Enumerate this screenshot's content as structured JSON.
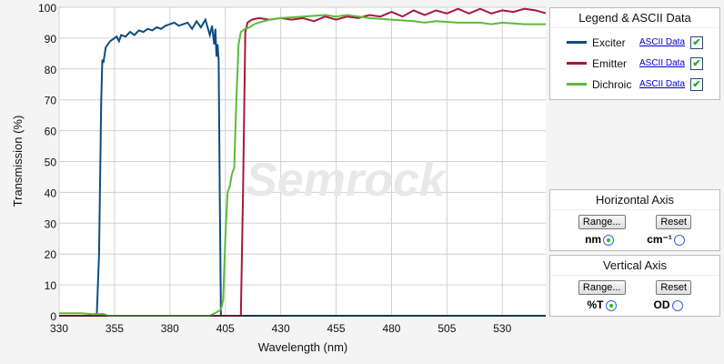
{
  "chart_data": {
    "type": "line",
    "title": "",
    "xlabel": "Wavelength (nm)",
    "ylabel": "Transmission (%)",
    "xlim": [
      330,
      550
    ],
    "ylim": [
      0,
      100
    ],
    "xticks": [
      330,
      355,
      380,
      405,
      430,
      455,
      480,
      505,
      530
    ],
    "yticks": [
      0,
      10,
      20,
      30,
      40,
      50,
      60,
      70,
      80,
      90,
      100
    ],
    "grid": true,
    "watermark": "Semrock",
    "series": [
      {
        "name": "Exciter",
        "color": "#0e4d7f",
        "x": [
          330,
          347,
          348,
          349,
          349.5,
          350,
          351,
          352,
          353,
          355,
          356,
          357,
          358,
          360,
          362,
          364,
          366,
          368,
          370,
          372,
          374,
          376,
          378,
          380,
          382,
          384,
          386,
          388,
          390,
          392,
          394,
          396,
          398,
          399,
          400,
          400.5,
          401,
          401.5,
          402,
          402.5,
          403,
          404,
          550
        ],
        "y": [
          0,
          0,
          20,
          70,
          83,
          82,
          87,
          88,
          89,
          90,
          90.5,
          89,
          91,
          90.5,
          92,
          91,
          92.5,
          92,
          93,
          92.5,
          93.5,
          93,
          94,
          94.5,
          95,
          94,
          94.5,
          95,
          93,
          95.5,
          93.5,
          96,
          91,
          94,
          88,
          93,
          84,
          88,
          83,
          40,
          0,
          0,
          0
        ]
      },
      {
        "name": "Emitter",
        "color": "#a41a3a",
        "x": [
          330,
          412,
          413,
          414,
          415,
          417,
          420,
          425,
          430,
          435,
          440,
          445,
          450,
          455,
          460,
          465,
          470,
          475,
          480,
          485,
          490,
          495,
          500,
          505,
          510,
          515,
          520,
          525,
          530,
          535,
          540,
          545,
          550
        ],
        "y": [
          0,
          0,
          40,
          92,
          95,
          96,
          96.5,
          96,
          96.5,
          96,
          96.5,
          95.5,
          97,
          96,
          97,
          96.5,
          97.5,
          97,
          98.5,
          97,
          99,
          97.5,
          99,
          98,
          99.5,
          98,
          99.5,
          98,
          99,
          98.5,
          99.5,
          99,
          98
        ]
      },
      {
        "name": "Dichroic",
        "color": "#5cba3c",
        "x": [
          330,
          340,
          345,
          350,
          352,
          355,
          398,
          402,
          403,
          404,
          405,
          406,
          407,
          408,
          409,
          410,
          411,
          412,
          414,
          416,
          418,
          420,
          425,
          430,
          440,
          450,
          455,
          460,
          470,
          480,
          490,
          495,
          500,
          510,
          520,
          525,
          530,
          540,
          550
        ],
        "y": [
          0.8,
          0.8,
          0.5,
          0.6,
          0,
          0,
          0,
          1.5,
          2,
          5,
          25,
          40,
          42,
          46,
          48,
          70,
          88,
          92,
          93,
          93.5,
          94.5,
          95,
          96,
          96.5,
          97,
          97.5,
          97,
          97.5,
          96.5,
          96,
          95.5,
          95,
          95.5,
          95,
          95,
          94.5,
          95,
          94.5,
          94.5
        ]
      }
    ]
  },
  "legend": {
    "title": "Legend & ASCII Data",
    "items": [
      {
        "name": "Exciter",
        "link": "ASCII Data",
        "checked": "✔"
      },
      {
        "name": "Emitter",
        "link": "ASCII Data",
        "checked": "✔"
      },
      {
        "name": "Dichroic",
        "link": "ASCII Data",
        "checked": "✔"
      }
    ]
  },
  "haxis": {
    "title": "Horizontal Axis",
    "range": "Range...",
    "reset": "Reset",
    "opt1": "nm",
    "opt2": "cm⁻¹",
    "selected": "nm"
  },
  "vaxis": {
    "title": "Vertical  Axis",
    "range": "Range...",
    "reset": "Reset",
    "opt1": "%T",
    "opt2": "OD",
    "selected": "%T"
  }
}
